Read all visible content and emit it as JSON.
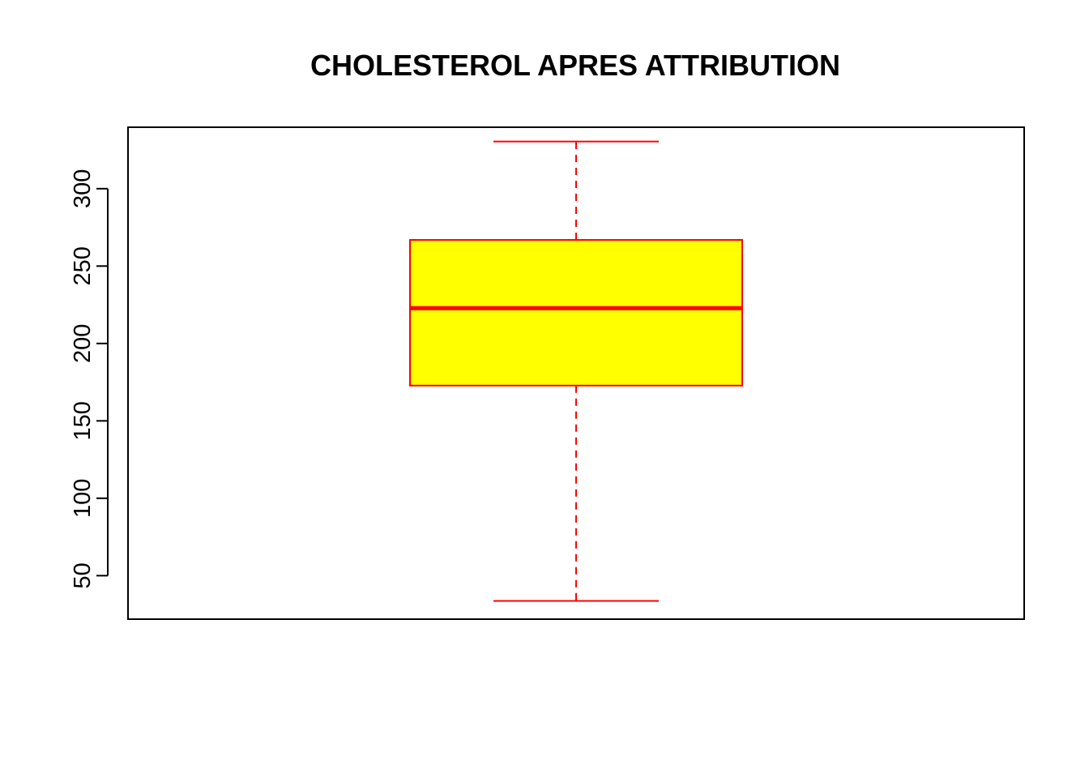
{
  "chart_data": {
    "type": "box",
    "title": "CHOLESTEROL APRES ATTRIBUTION",
    "xlabel": "",
    "ylabel": "",
    "yticks": [
      50,
      100,
      150,
      200,
      250,
      300
    ],
    "ylim": [
      21.9,
      339.7
    ],
    "grid": false,
    "box": {
      "whisker_low": 33.7,
      "q1": 172.8,
      "median": 222.8,
      "q3": 266.9,
      "whisker_high": 330.5
    },
    "colors": {
      "box_fill": "#ffff00",
      "box_border": "#ff0000",
      "median": "#ff0000",
      "whisker": "#ff0000",
      "frame": "#000000"
    }
  }
}
